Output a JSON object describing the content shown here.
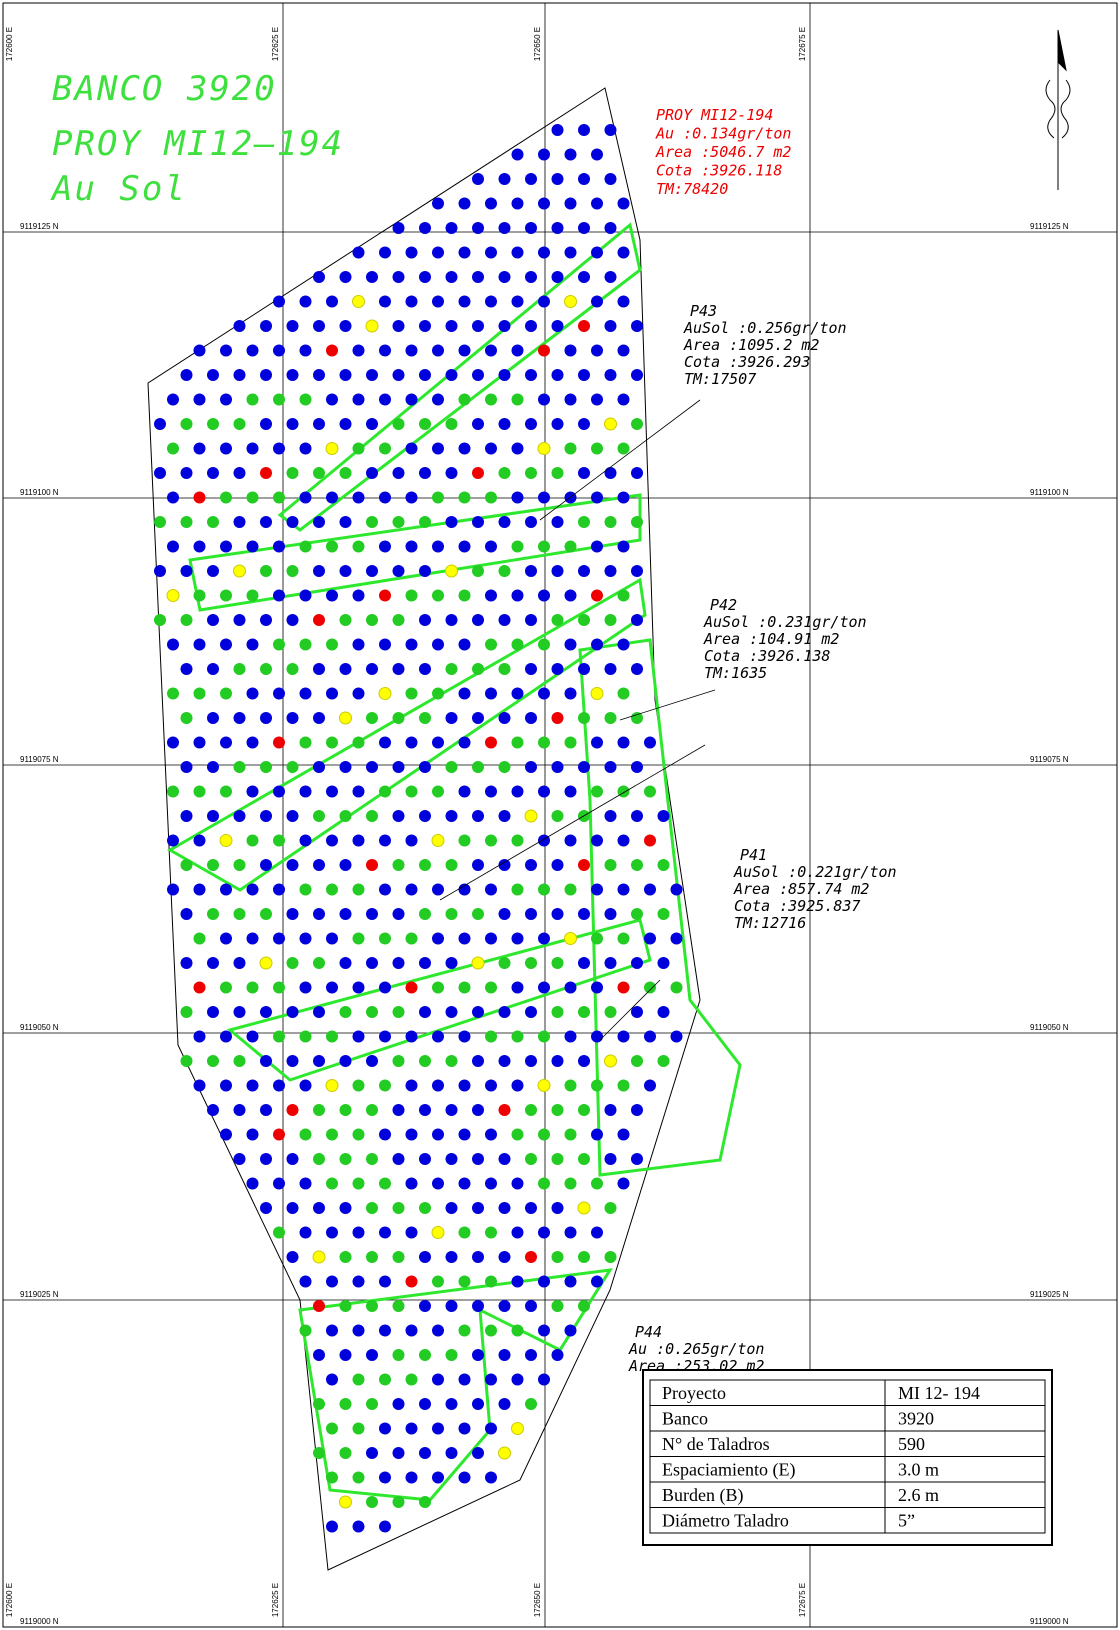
{
  "map": {
    "title_lines": [
      "BANCO 3920",
      "PROY MI12–194",
      "Au Sol"
    ],
    "summary": [
      "PROY MI12-194",
      "Au :0.134gr/ton",
      "Area :5046.7 m2",
      "Cota :3926.118",
      "TM:78420"
    ],
    "polygons": [
      {
        "name": "P43",
        "lines": [
          "AuSol :0.256gr/ton",
          "Area :1095.2 m2",
          "Cota :3926.293",
          "TM:17507"
        ]
      },
      {
        "name": "P42",
        "lines": [
          "AuSol :0.231gr/ton",
          "Area :104.91 m2",
          "Cota :3926.138",
          "TM:1635"
        ]
      },
      {
        "name": "P41",
        "lines": [
          "AuSol :0.221gr/ton",
          "Area :857.74 m2",
          "Cota :3925.837",
          "TM:12716"
        ]
      },
      {
        "name": "P44",
        "lines": [
          "Au :0.265gr/ton",
          "Area :253.02 m2"
        ]
      }
    ],
    "eastings": [
      "172600 E",
      "172625 E",
      "172650 E",
      "172675 E"
    ],
    "northings": [
      "9119125 N",
      "9119100 N",
      "9119075 N",
      "9119050 N",
      "9119025 N",
      "9119000 N"
    ]
  },
  "table": {
    "rows": [
      [
        "Proyecto",
        "MI 12- 194"
      ],
      [
        "Banco",
        "3920"
      ],
      [
        "N° de Taladros",
        "590"
      ],
      [
        "Espaciamiento (E)",
        "3.0 m"
      ],
      [
        "Burden (B)",
        "2.6 m"
      ],
      [
        "Diámetro Taladro",
        "5”"
      ]
    ]
  }
}
